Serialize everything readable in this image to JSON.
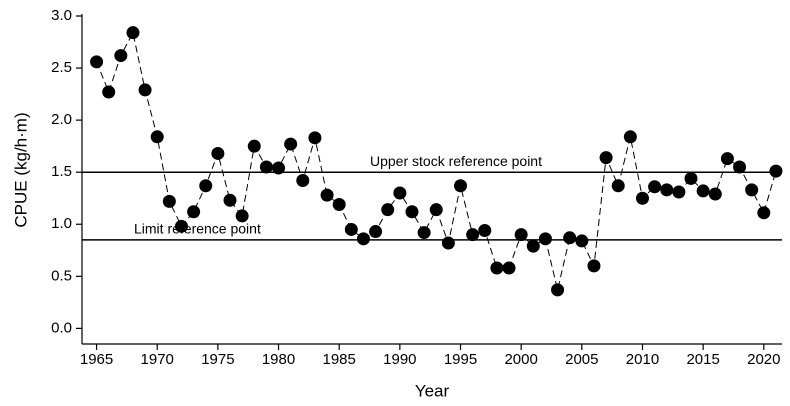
{
  "chart_data": {
    "type": "line",
    "x_label": "Year",
    "y_label": "CPUE (kg/h·m)",
    "x": [
      1965,
      1966,
      1967,
      1968,
      1969,
      1970,
      1971,
      1972,
      1973,
      1974,
      1975,
      1976,
      1977,
      1978,
      1979,
      1980,
      1981,
      1982,
      1983,
      1984,
      1985,
      1986,
      1987,
      1988,
      1989,
      1990,
      1991,
      1992,
      1993,
      1994,
      1995,
      1996,
      1997,
      1998,
      1999,
      2000,
      2001,
      2002,
      2003,
      2004,
      2005,
      2006,
      2007,
      2008,
      2009,
      2010,
      2011,
      2012,
      2013,
      2014,
      2015,
      2016,
      2017,
      2018,
      2019,
      2020,
      2021
    ],
    "series": [
      {
        "color": "#000000",
        "values": [
          2.56,
          2.27,
          2.62,
          2.84,
          2.29,
          1.84,
          1.22,
          0.98,
          1.12,
          1.37,
          1.68,
          1.23,
          1.08,
          1.75,
          1.55,
          1.54,
          1.77,
          1.42,
          1.83,
          1.28,
          1.19,
          0.95,
          0.86,
          0.93,
          1.14,
          1.3,
          1.12,
          0.92,
          1.14,
          0.82,
          1.37,
          0.9,
          0.94,
          0.58,
          0.58,
          0.9,
          0.79,
          0.86,
          0.37,
          0.87,
          0.84,
          0.6,
          1.64,
          1.37,
          1.84,
          1.25,
          1.36,
          1.33,
          1.31,
          1.44,
          1.32,
          1.29,
          1.63,
          1.55,
          1.33,
          1.11,
          1.51
        ]
      }
    ],
    "reference_lines": [
      {
        "value": 1.5,
        "label": "Upper stock reference point"
      },
      {
        "value": 0.85,
        "label": "Limit reference point"
      }
    ],
    "xlim": [
      1963.8,
      2021.5
    ],
    "xticks": [
      1965,
      1970,
      1975,
      1980,
      1985,
      1990,
      1995,
      2000,
      2005,
      2010,
      2015,
      2020
    ],
    "ylim": [
      -0.15,
      3.0
    ],
    "yticks": [
      {
        "value": 0,
        "label": "0.0"
      },
      0.5,
      {
        "value": 1,
        "label": "1.0"
      },
      1.5,
      {
        "value": 2,
        "label": "2.0"
      },
      2.5,
      {
        "value": 3,
        "label": "3.0"
      }
    ]
  }
}
